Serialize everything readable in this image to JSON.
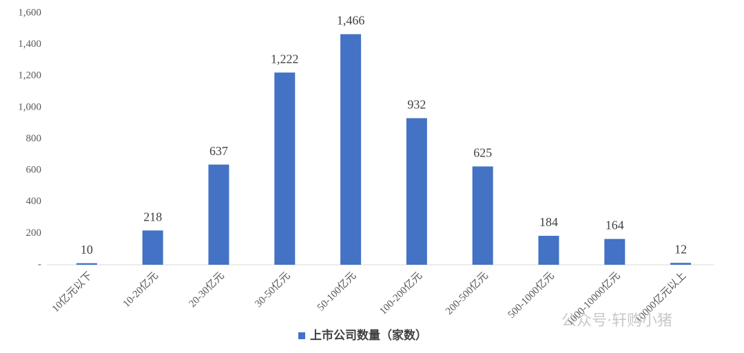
{
  "chart_data": {
    "type": "bar",
    "categories": [
      "10亿元以下",
      "10-20亿元",
      "20-30亿元",
      "30-50亿元",
      "50-100亿元",
      "100-200亿元",
      "200-500亿元",
      "500-1000亿元",
      "1000-10000亿元",
      "10000亿元以上"
    ],
    "series": [
      {
        "name": "上市公司数量（家数）",
        "color": "#4472c4",
        "values": [
          10,
          218,
          637,
          1222,
          1466,
          932,
          625,
          184,
          164,
          12
        ],
        "value_labels": [
          "10",
          "218",
          "637",
          "1,222",
          "1,466",
          "932",
          "625",
          "184",
          "164",
          "12"
        ]
      }
    ],
    "ylim": [
      0,
      1600
    ],
    "yticks": [
      {
        "value": 0,
        "label": "-"
      },
      200,
      400,
      600,
      800,
      {
        "value": 1000,
        "label": "1,000"
      },
      {
        "value": 1200,
        "label": "1,200"
      },
      {
        "value": 1400,
        "label": "1,400"
      },
      {
        "value": 1600,
        "label": "1,600"
      }
    ],
    "grid": false,
    "legend": "bottom",
    "watermark": "公众号·轩购小猪"
  }
}
